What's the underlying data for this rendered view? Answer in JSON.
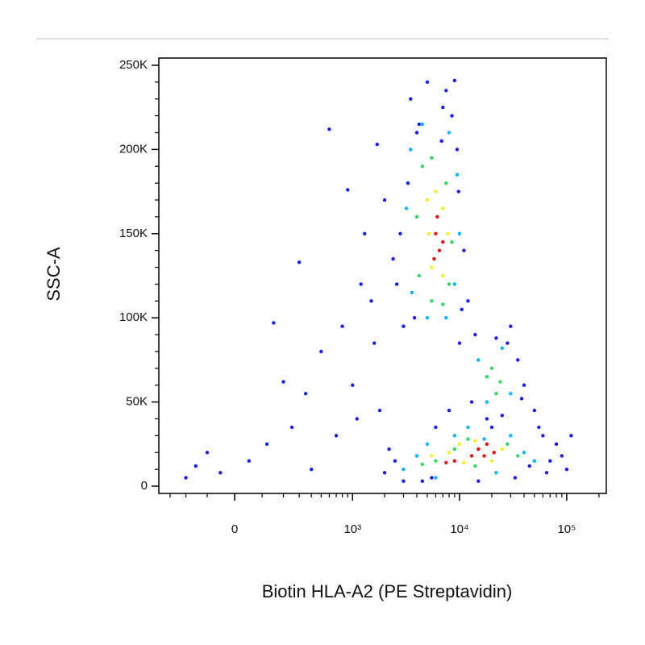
{
  "chart_data": {
    "type": "scatter",
    "xlabel": "Biotin HLA-A2 (PE Streptavidin)",
    "ylabel": "SSC-A",
    "xscale": "biexponential",
    "xscale_linear_width": 80,
    "xlim": [
      -392,
      234000
    ],
    "xticks": [
      0,
      {
        "value": 1000,
        "label": "10³"
      },
      {
        "value": 10000,
        "label": "10⁴"
      },
      {
        "value": 100000,
        "label": "10⁵"
      }
    ],
    "xminorticks": [
      -300,
      -200,
      -100,
      100,
      200,
      300,
      400,
      500,
      600,
      700,
      800,
      900,
      2000,
      3000,
      4000,
      5000,
      6000,
      7000,
      8000,
      9000,
      20000,
      30000,
      40000,
      50000,
      60000,
      70000,
      80000,
      90000,
      200000
    ],
    "ylim": [
      -4300,
      254300
    ],
    "yticks": [
      0,
      {
        "value": 50000,
        "label": "50K"
      },
      {
        "value": 100000,
        "label": "100K"
      },
      {
        "value": 150000,
        "label": "150K"
      },
      {
        "value": 200000,
        "label": "200K"
      },
      {
        "value": 250000,
        "label": "250K"
      }
    ],
    "yminorticks": [
      10000,
      20000,
      30000,
      40000,
      60000,
      70000,
      80000,
      90000,
      110000,
      120000,
      130000,
      140000,
      160000,
      170000,
      180000,
      190000,
      210000,
      220000,
      230000,
      240000
    ],
    "series": [
      {
        "color": "#1a1aff",
        "x": [
          -150,
          -50,
          50,
          120,
          200,
          150,
          300,
          600,
          900,
          1300,
          1700,
          2000,
          1500,
          1000,
          700,
          400,
          -100,
          250,
          800,
          1200,
          3500,
          5000,
          7500,
          9000,
          4000,
          9500,
          2800,
          11000,
          2600,
          12000,
          3000,
          10000,
          14000,
          30000,
          35000,
          40000,
          50000,
          13000,
          8000,
          6000,
          2500,
          2000,
          3000,
          70000,
          80000,
          60000,
          100000,
          110000,
          45000,
          25000,
          18000,
          5500,
          4500,
          2200,
          1800,
          3300,
          8500,
          7000,
          9800,
          22000,
          28000,
          38000,
          55000,
          65000,
          90000,
          4200,
          6800,
          3800,
          10500,
          2400,
          20000,
          15000,
          33000,
          1100,
          500,
          -200,
          350,
          1600
        ],
        "values": [
          12000,
          8000,
          15000,
          25000,
          62000,
          97000,
          133000,
          212000,
          176000,
          150000,
          203000,
          170000,
          110000,
          60000,
          30000,
          10000,
          20000,
          35000,
          95000,
          120000,
          230000,
          240000,
          235000,
          241000,
          210000,
          200000,
          150000,
          140000,
          120000,
          110000,
          95000,
          85000,
          90000,
          95000,
          75000,
          60000,
          45000,
          50000,
          45000,
          35000,
          15000,
          8000,
          3000,
          15000,
          25000,
          30000,
          10000,
          30000,
          12000,
          42000,
          40000,
          5000,
          3000,
          22000,
          45000,
          180000,
          220000,
          225000,
          175000,
          88000,
          85000,
          52000,
          35000,
          8000,
          18000,
          215000,
          205000,
          100000,
          105000,
          135000,
          35000,
          3000,
          5000,
          40000,
          80000,
          5000,
          55000,
          85000
        ]
      },
      {
        "color": "#00b4ff",
        "x": [
          3500,
          4500,
          8000,
          9500,
          3200,
          10000,
          3600,
          9000,
          5000,
          7500,
          15000,
          25000,
          30000,
          18000,
          3000,
          5000,
          9000,
          30000,
          40000,
          12000,
          6000,
          22000,
          50000,
          4000,
          17000
        ],
        "values": [
          200000,
          215000,
          210000,
          185000,
          165000,
          150000,
          115000,
          120000,
          100000,
          100000,
          75000,
          82000,
          55000,
          50000,
          10000,
          25000,
          30000,
          30000,
          20000,
          35000,
          5000,
          8000,
          15000,
          18000,
          28000
        ]
      },
      {
        "color": "#30d860",
        "x": [
          4500,
          5500,
          7500,
          4000,
          8500,
          4200,
          8000,
          5500,
          7000,
          20000,
          24000,
          18000,
          22000,
          6000,
          9000,
          12000,
          28000,
          35000,
          4500,
          14000
        ],
        "values": [
          190000,
          195000,
          180000,
          160000,
          145000,
          125000,
          120000,
          110000,
          108000,
          70000,
          62000,
          65000,
          55000,
          15000,
          22000,
          28000,
          25000,
          18000,
          13000,
          12000
        ]
      },
      {
        "color": "#f0f020",
        "x": [
          5000,
          7000,
          5200,
          7800,
          5500,
          7000,
          6000,
          8000,
          10000,
          14000,
          25000,
          20000,
          11000,
          5500
        ],
        "values": [
          170000,
          165000,
          150000,
          150000,
          130000,
          125000,
          175000,
          20000,
          25000,
          27000,
          22000,
          15000,
          14000,
          18000
        ]
      },
      {
        "color": "#e81010",
        "x": [
          6000,
          6500,
          5800,
          7000,
          6200,
          15000,
          18000,
          21000,
          13000,
          17000,
          9000,
          7500
        ],
        "values": [
          150000,
          140000,
          135000,
          145000,
          160000,
          22000,
          25000,
          20000,
          18000,
          18000,
          15000,
          14000
        ]
      }
    ]
  }
}
